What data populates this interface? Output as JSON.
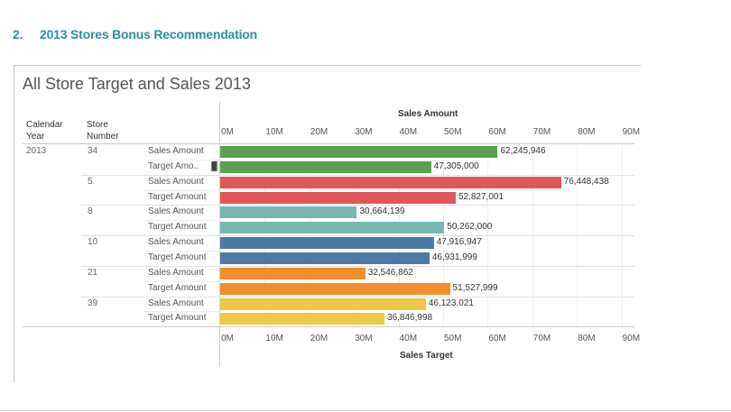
{
  "section": {
    "number": "2.",
    "title": "2013 Stores Bonus Recommendation"
  },
  "dashboard": {
    "title": "All Store Target and Sales 2013"
  },
  "headers": {
    "year": "Calendar Year",
    "store": "Store Number"
  },
  "colors": {
    "34": "#59a14f",
    "5": "#e15759",
    "8": "#76b7b2",
    "10": "#4e79a7",
    "21": "#f28e2b",
    "39": "#edc948"
  },
  "chart_data": {
    "type": "bar",
    "orientation": "horizontal",
    "top_axis_title": "Sales Amount",
    "bottom_axis_title": "Sales Target",
    "xlim": [
      0,
      90000000
    ],
    "tick_labels": [
      "0M",
      "10M",
      "20M",
      "30M",
      "40M",
      "50M",
      "60M",
      "70M",
      "80M",
      "90M"
    ],
    "year": "2013",
    "stores": [
      {
        "store": "34",
        "rows": [
          {
            "measure": "Sales Amount",
            "value": 62245946,
            "label": "62,245,946"
          },
          {
            "measure": "Target Amo..",
            "value": 47305000,
            "label": "47,305,000"
          }
        ]
      },
      {
        "store": "5",
        "rows": [
          {
            "measure": "Sales Amount",
            "value": 76448438,
            "label": "76,448,438"
          },
          {
            "measure": "Target Amount",
            "value": 52827001,
            "label": "52,827,001"
          }
        ]
      },
      {
        "store": "8",
        "rows": [
          {
            "measure": "Sales Amount",
            "value": 30664139,
            "label": "30,664,139"
          },
          {
            "measure": "Target Amount",
            "value": 50262000,
            "label": "50,262,000"
          }
        ]
      },
      {
        "store": "10",
        "rows": [
          {
            "measure": "Sales Amount",
            "value": 47916947,
            "label": "47,916,947"
          },
          {
            "measure": "Target Amount",
            "value": 46931999,
            "label": "46,931,999"
          }
        ]
      },
      {
        "store": "21",
        "rows": [
          {
            "measure": "Sales Amount",
            "value": 32546862,
            "label": "32,546,862"
          },
          {
            "measure": "Target Amount",
            "value": 51527999,
            "label": "51,527,999"
          }
        ]
      },
      {
        "store": "39",
        "rows": [
          {
            "measure": "Sales Amount",
            "value": 46123021,
            "label": "46,123,021"
          },
          {
            "measure": "Target Amount",
            "value": 36846998,
            "label": "36,846,998"
          }
        ]
      }
    ]
  }
}
